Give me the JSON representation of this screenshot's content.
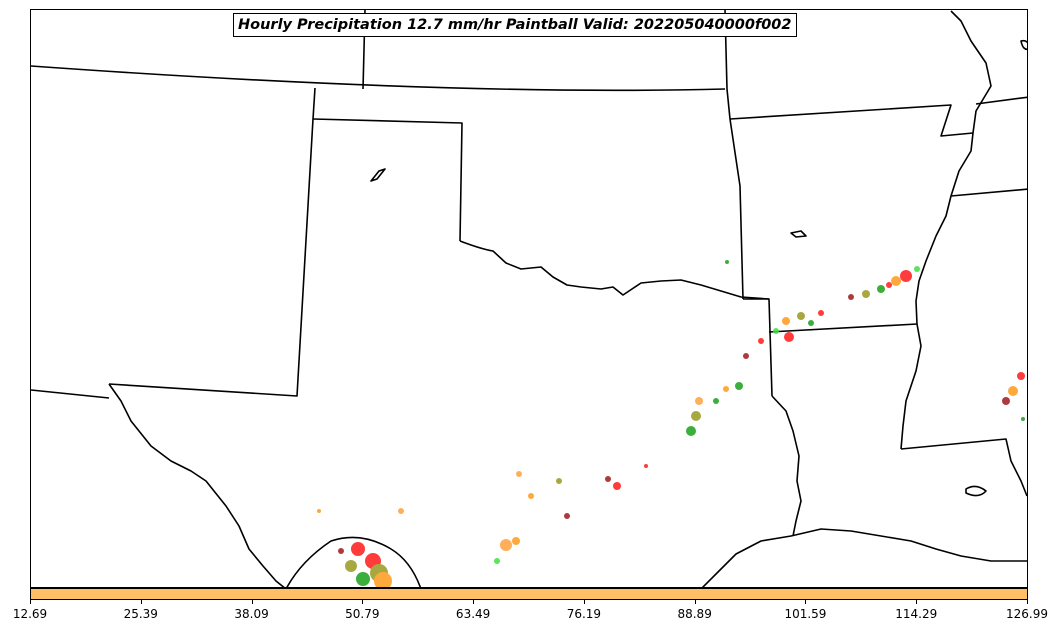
{
  "title": "Hourly Precipitation 12.7 mm/hr Paintball Valid: 202205040000f002",
  "colorbar": {
    "color": "#ffbf66",
    "ticks": [
      "12.69",
      "25.39",
      "38.09",
      "50.79",
      "63.49",
      "76.19",
      "88.89",
      "101.59",
      "114.29",
      "126.99"
    ],
    "range": [
      12.69,
      126.99
    ]
  },
  "paint_colors": {
    "red": "#ff1a1a",
    "orange": "#ff9a1a",
    "light_orange": "#ffa040",
    "olive": "#9a9a20",
    "green": "#1aa01a",
    "light_green": "#40e040",
    "dark_red": "#a01a1a",
    "dark_gray": "#404040"
  }
}
